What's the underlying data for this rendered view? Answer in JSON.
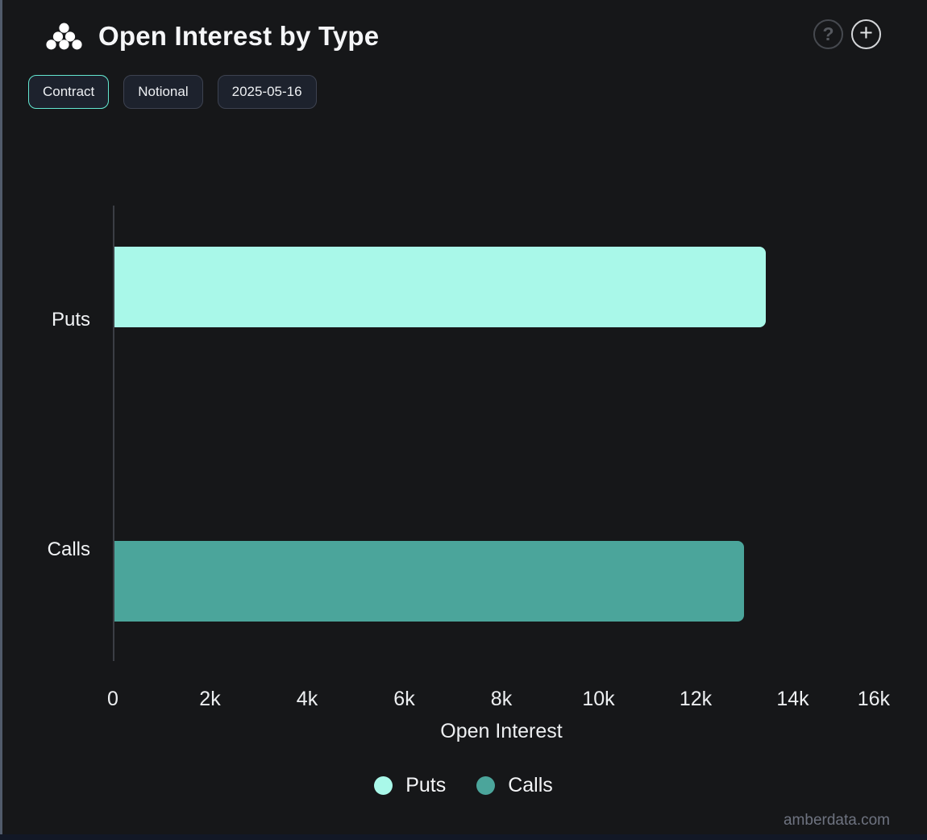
{
  "header": {
    "title": "Open Interest by Type",
    "logo_icon": "cluster-dots-icon",
    "help_icon": "?",
    "add_icon": "+"
  },
  "toolbar": {
    "buttons": [
      {
        "label": "Contract",
        "active": true
      },
      {
        "label": "Notional",
        "active": false
      },
      {
        "label": "2025-05-16",
        "active": false
      }
    ]
  },
  "chart_data": {
    "type": "bar",
    "orientation": "horizontal",
    "title": "Open Interest by Type",
    "categories": [
      "Puts",
      "Calls"
    ],
    "values": [
      13450,
      13000
    ],
    "bar_colors": [
      "#a9f8e9",
      "#4ba59b"
    ],
    "xlabel": "Open Interest",
    "xlim": [
      0,
      16000
    ],
    "x_ticks": [
      {
        "value": 0,
        "label": "0"
      },
      {
        "value": 2000,
        "label": "2k"
      },
      {
        "value": 4000,
        "label": "4k"
      },
      {
        "value": 6000,
        "label": "6k"
      },
      {
        "value": 8000,
        "label": "8k"
      },
      {
        "value": 10000,
        "label": "10k"
      },
      {
        "value": 12000,
        "label": "12k"
      },
      {
        "value": 14000,
        "label": "14k"
      },
      {
        "value": 16000,
        "label": "16k"
      }
    ],
    "legend": [
      {
        "label": "Puts",
        "color": "#a9f8e9"
      },
      {
        "label": "Calls",
        "color": "#4ba59b"
      }
    ],
    "legend_position": "bottom",
    "grid": false
  },
  "footer": {
    "watermark": "amberdata.com"
  },
  "colors": {
    "background": "#161719",
    "accent": "#63e6d0",
    "axis_line": "#3b3e44",
    "puts": "#a9f8e9",
    "calls": "#4ba59b"
  }
}
